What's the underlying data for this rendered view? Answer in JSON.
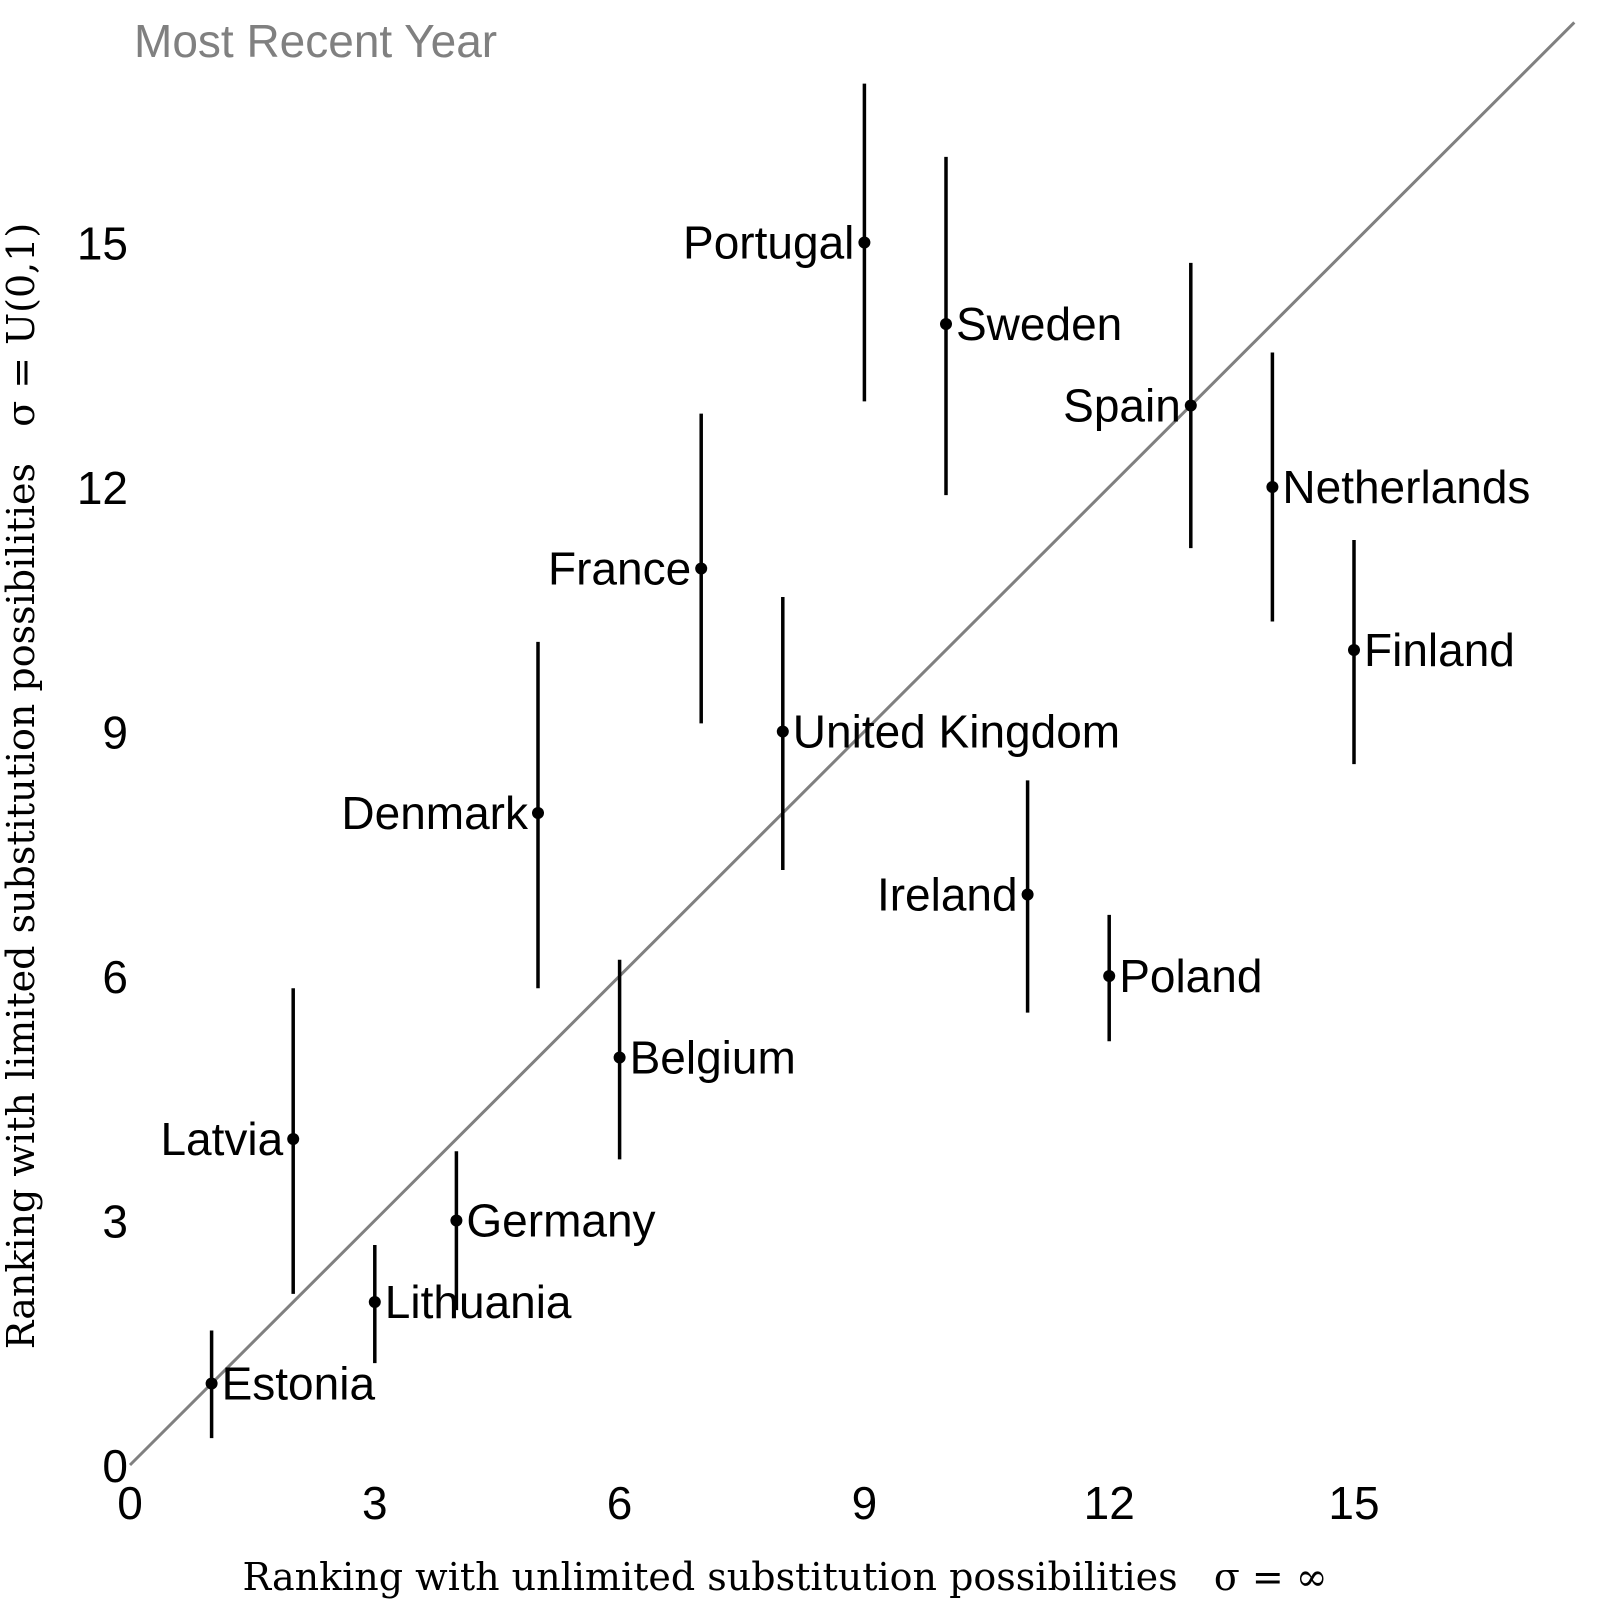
{
  "chart_data": {
    "type": "scatter",
    "title": "Most Recent Year",
    "xlabel": "Ranking with unlimited substitution possibilities   σ = ∞",
    "ylabel": "Ranking with limited substitution possibilities   σ = U(0,1)",
    "xlim": [
      0,
      17.7
    ],
    "ylim": [
      0,
      17.9
    ],
    "x_ticks": [
      "0",
      "3",
      "6",
      "9",
      "12",
      "15"
    ],
    "y_ticks": [
      "0",
      "3",
      "6",
      "9",
      "12",
      "15"
    ],
    "reference_line": "y = x",
    "grid": false,
    "points": [
      {
        "name": "Estonia",
        "x": 1,
        "y": 1,
        "low": 0.33,
        "high": 1.65,
        "label_side": "right"
      },
      {
        "name": "Latvia",
        "x": 2,
        "y": 4,
        "low": 2.1,
        "high": 5.85,
        "label_side": "left"
      },
      {
        "name": "Lithuania",
        "x": 3,
        "y": 2,
        "low": 1.25,
        "high": 2.7,
        "label_side": "right"
      },
      {
        "name": "Germany",
        "x": 4,
        "y": 3,
        "low": 1.9,
        "high": 3.85,
        "label_side": "right"
      },
      {
        "name": "Denmark",
        "x": 5,
        "y": 8,
        "low": 5.85,
        "high": 10.1,
        "label_side": "left"
      },
      {
        "name": "Belgium",
        "x": 6,
        "y": 5,
        "low": 3.75,
        "high": 6.2,
        "label_side": "right"
      },
      {
        "name": "France",
        "x": 7,
        "y": 11,
        "low": 9.1,
        "high": 12.9,
        "label_side": "left"
      },
      {
        "name": "United Kingdom",
        "x": 8,
        "y": 9,
        "low": 7.3,
        "high": 10.65,
        "label_side": "right"
      },
      {
        "name": "Portugal",
        "x": 9,
        "y": 15,
        "low": 13.05,
        "high": 16.95,
        "label_side": "left"
      },
      {
        "name": "Sweden",
        "x": 10,
        "y": 14,
        "low": 11.9,
        "high": 16.05,
        "label_side": "right"
      },
      {
        "name": "Ireland",
        "x": 11,
        "y": 7,
        "low": 5.55,
        "high": 8.4,
        "label_side": "left"
      },
      {
        "name": "Poland",
        "x": 12,
        "y": 6,
        "low": 5.2,
        "high": 6.75,
        "label_side": "right"
      },
      {
        "name": "Spain",
        "x": 13,
        "y": 13,
        "low": 11.25,
        "high": 14.75,
        "label_side": "left"
      },
      {
        "name": "Netherlands",
        "x": 14,
        "y": 12,
        "low": 10.35,
        "high": 13.65,
        "label_side": "right"
      },
      {
        "name": "Finland",
        "x": 15,
        "y": 10,
        "low": 8.6,
        "high": 11.35,
        "label_side": "right"
      }
    ],
    "colors": {
      "points": "#000000",
      "reference_line": "#808080",
      "title": "#808080"
    }
  }
}
